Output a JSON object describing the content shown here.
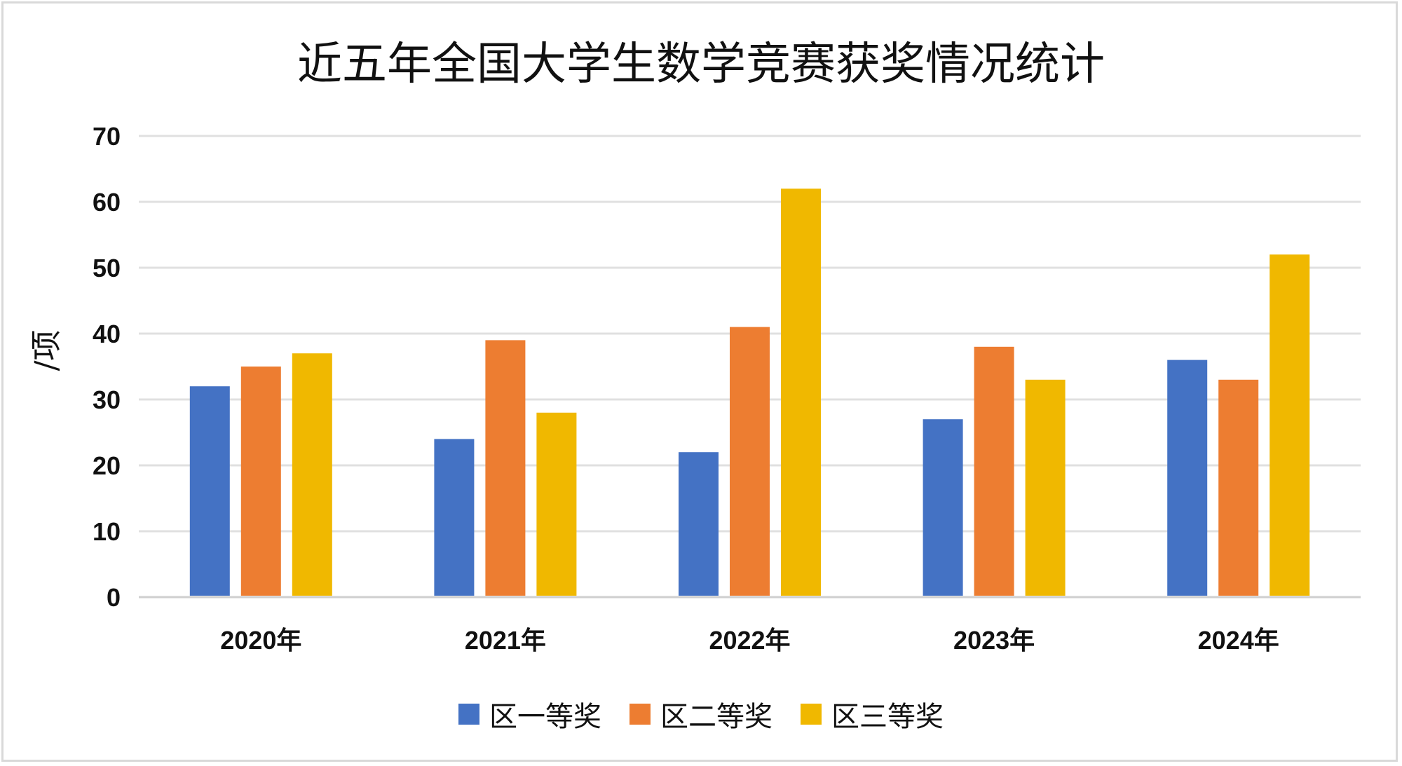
{
  "chart_data": {
    "type": "bar",
    "title": "近五年全国大学生数学竞赛获奖情况统计",
    "xlabel": "",
    "ylabel": "/项",
    "ylim": [
      0,
      70
    ],
    "yticks": [
      0,
      10,
      20,
      30,
      40,
      50,
      60,
      70
    ],
    "grid": true,
    "legend_position": "bottom",
    "categories": [
      "2020年",
      "2021年",
      "2022年",
      "2023年",
      "2024年"
    ],
    "series": [
      {
        "name": "区一等奖",
        "color": "#4472c4",
        "values": [
          32,
          24,
          22,
          27,
          36
        ]
      },
      {
        "name": "区二等奖",
        "color": "#ed7d31",
        "values": [
          35,
          39,
          41,
          38,
          33
        ]
      },
      {
        "name": "区三等奖",
        "color": "#f0b800",
        "values": [
          37,
          28,
          62,
          33,
          52
        ]
      }
    ]
  }
}
